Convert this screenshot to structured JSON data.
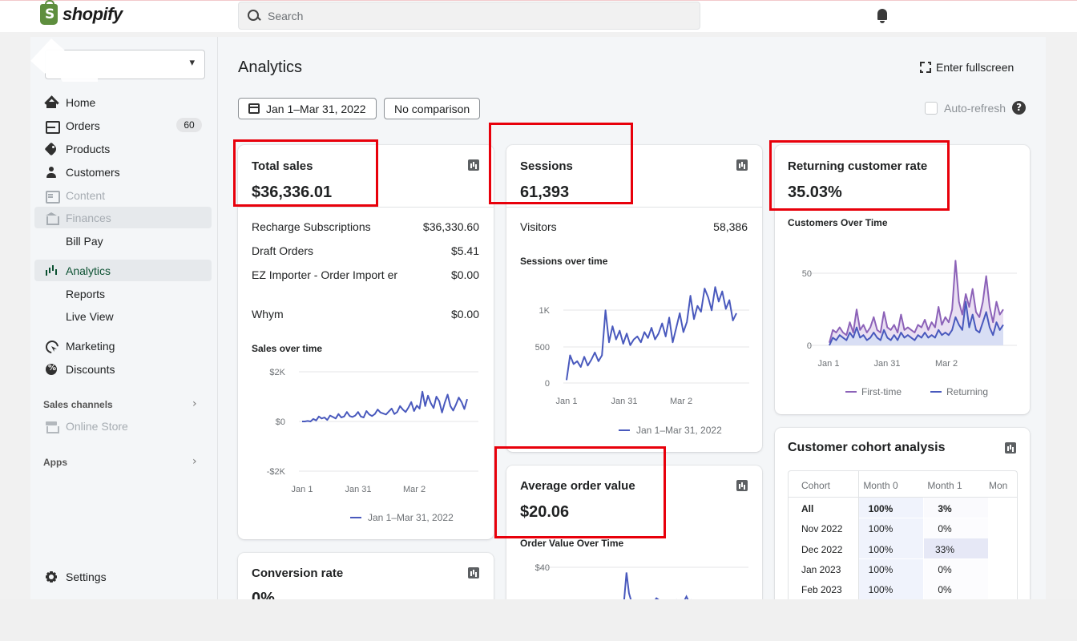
{
  "brand": {
    "name": "shopify",
    "logo_glyph": "S"
  },
  "search": {
    "placeholder": "Search"
  },
  "sidebar": {
    "items": [
      {
        "label": "Home",
        "icon": "home-icon"
      },
      {
        "label": "Orders",
        "icon": "orders-icon",
        "badge": "60"
      },
      {
        "label": "Products",
        "icon": "tag-icon"
      },
      {
        "label": "Customers",
        "icon": "person-icon"
      },
      {
        "label": "Content",
        "icon": "content-icon",
        "muted": true
      },
      {
        "label": "Finances",
        "icon": "bank-icon",
        "muted": true
      },
      {
        "label": "Bill Pay",
        "sub": true
      },
      {
        "label": "Analytics",
        "icon": "bar-chart-icon",
        "active": true
      },
      {
        "label": "Reports",
        "sub": true
      },
      {
        "label": "Live View",
        "sub": true
      },
      {
        "label": "Marketing",
        "icon": "target-icon"
      },
      {
        "label": "Discounts",
        "icon": "discount-icon"
      }
    ],
    "sales_channels_label": "Sales channels",
    "online_store_label": "Online Store",
    "apps_label": "Apps",
    "settings_label": "Settings"
  },
  "page": {
    "title": "Analytics",
    "fullscreen_label": "Enter fullscreen",
    "date_range": "Jan 1–Mar 31, 2022",
    "comparison": "No comparison",
    "auto_refresh_label": "Auto-refresh"
  },
  "total_sales": {
    "title": "Total sales",
    "value": "$36,336.01",
    "rows": [
      {
        "label": "Recharge Subscriptions",
        "value": "$36,330.60"
      },
      {
        "label": "Draft Orders",
        "value": "$5.41"
      },
      {
        "label": "EZ Importer - Order Import er",
        "value": "$0.00"
      },
      {
        "label": "Whym",
        "value": "$0.00"
      }
    ],
    "chart_title": "Sales over time",
    "legend": "Jan 1–Mar 31, 2022"
  },
  "sessions": {
    "title": "Sessions",
    "value": "61,393",
    "rows": [
      {
        "label": "Visitors",
        "value": "58,386"
      }
    ],
    "chart_title": "Sessions over time",
    "legend": "Jan 1–Mar 31, 2022"
  },
  "returning": {
    "title": "Returning customer rate",
    "value": "35.03%",
    "chart_title": "Customers Over Time"
  },
  "aov": {
    "title": "Average order value",
    "value": "$20.06",
    "chart_title": "Order Value Over Time"
  },
  "conversion": {
    "title": "Conversion rate",
    "value": "0%"
  },
  "cohort": {
    "title": "Customer cohort analysis",
    "headers": [
      "Cohort",
      "Month 0",
      "Month 1",
      "Mon"
    ],
    "rows": [
      {
        "cohort": "All",
        "m0": "100%",
        "m1": "3%"
      },
      {
        "cohort": "Nov 2022",
        "m0": "100%",
        "m1": "0%"
      },
      {
        "cohort": "Dec 2022",
        "m0": "100%",
        "m1": "33%"
      },
      {
        "cohort": "Jan 2023",
        "m0": "100%",
        "m1": "0%"
      },
      {
        "cohort": "Feb 2023",
        "m0": "100%",
        "m1": "0%"
      }
    ]
  },
  "chart_data": [
    {
      "type": "line",
      "title": "Sales over time",
      "x_ticks": [
        "Jan 1",
        "Jan 31",
        "Mar 2"
      ],
      "y_ticks": [
        "$2K",
        "$0",
        "-$2K"
      ],
      "ylim": [
        -2000,
        2000
      ],
      "series": [
        {
          "name": "Jan 1–Mar 31, 2022",
          "color": "#4959bd",
          "values": [
            0,
            0,
            20,
            0,
            100,
            40,
            200,
            120,
            160,
            60,
            240,
            180,
            120,
            300,
            160,
            200,
            380,
            220,
            180,
            240,
            380,
            200,
            160,
            420,
            280,
            220,
            300,
            480,
            360,
            320,
            280,
            400,
            520,
            300,
            380,
            620,
            480,
            380,
            560,
            780,
            420,
            640,
            520,
            1200,
            620,
            1040,
            740,
            540,
            1000,
            820,
            360,
            760,
            1080,
            620,
            440,
            680,
            960,
            780,
            500,
            900
          ]
        }
      ]
    },
    {
      "type": "line",
      "title": "Sessions over time",
      "x_ticks": [
        "Jan 1",
        "Jan 31",
        "Mar 2"
      ],
      "y_ticks": [
        "1K",
        "500",
        "0"
      ],
      "ylim": [
        0,
        1400
      ],
      "series": [
        {
          "name": "Jan 1–Mar 31, 2022",
          "color": "#4959bd",
          "values": [
            40,
            380,
            260,
            300,
            220,
            360,
            240,
            320,
            420,
            300,
            380,
            1000,
            560,
            780,
            600,
            720,
            540,
            680,
            520,
            600,
            640,
            560,
            700,
            620,
            760,
            600,
            680,
            820,
            640,
            900,
            560,
            760,
            960,
            700,
            840,
            1200,
            880,
            1060,
            980,
            1300,
            1180,
            1000,
            1320,
            1120,
            1260,
            1020,
            1140,
            860,
            960
          ]
        }
      ]
    },
    {
      "type": "area",
      "title": "Customers Over Time",
      "x_ticks": [
        "Jan 1",
        "Jan 31",
        "Mar 2"
      ],
      "y_ticks": [
        "50",
        "0"
      ],
      "ylim": [
        0,
        70
      ],
      "series": [
        {
          "name": "First-time",
          "color": "#8c62b8",
          "values": [
            2,
            12,
            10,
            14,
            10,
            8,
            18,
            10,
            28,
            12,
            16,
            10,
            14,
            22,
            12,
            10,
            26,
            14,
            12,
            16,
            10,
            24,
            12,
            14,
            12,
            10,
            16,
            14,
            20,
            12,
            18,
            14,
            30,
            16,
            22,
            18,
            28,
            66,
            34,
            24,
            40,
            30,
            44,
            26,
            22,
            34,
            54,
            30,
            18,
            34,
            24,
            28
          ]
        },
        {
          "name": "Returning",
          "color": "#4959bd",
          "values": [
            0,
            6,
            4,
            8,
            6,
            4,
            10,
            6,
            14,
            6,
            8,
            4,
            6,
            10,
            6,
            4,
            12,
            6,
            4,
            8,
            4,
            10,
            6,
            8,
            6,
            4,
            8,
            6,
            10,
            6,
            8,
            6,
            12,
            8,
            10,
            8,
            12,
            22,
            16,
            12,
            34,
            14,
            24,
            12,
            10,
            18,
            26,
            14,
            8,
            18,
            12,
            16
          ]
        }
      ]
    },
    {
      "type": "line",
      "title": "Order Value Over Time",
      "y_ticks": [
        "$40"
      ],
      "series": [
        {
          "color": "#4959bd",
          "values": [
            0,
            0,
            0,
            0,
            0,
            0,
            0,
            0,
            0,
            0,
            0,
            0,
            0,
            0,
            0,
            0,
            0,
            0,
            0,
            0,
            0,
            0,
            0,
            0,
            34,
            10,
            0,
            0,
            0,
            0,
            0,
            0,
            0,
            0,
            0,
            0,
            4,
            2,
            0,
            0,
            0,
            0,
            0,
            0,
            2,
            0,
            0,
            0,
            6,
            0,
            2,
            0,
            0,
            0,
            0,
            0,
            0,
            0,
            0,
            0,
            0,
            0,
            0,
            0,
            0,
            0,
            0,
            0,
            0,
            0
          ]
        }
      ]
    }
  ]
}
